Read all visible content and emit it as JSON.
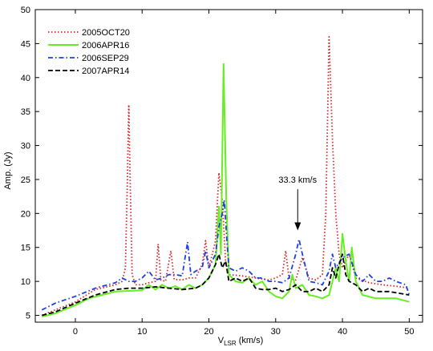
{
  "chart_data": {
    "type": "line",
    "xlabel_main": "V",
    "xlabel_sub": "LSR",
    "xlabel_unit": " (km/s)",
    "ylabel": "Amp. (Jy)",
    "xlim": [
      -6,
      52
    ],
    "ylim": [
      4,
      50
    ],
    "xticks": [
      0,
      10,
      20,
      30,
      40,
      50
    ],
    "yticks": [
      5,
      10,
      15,
      20,
      25,
      30,
      35,
      40,
      45,
      50
    ],
    "grid": false,
    "legend_position": "top-left",
    "annotation": {
      "text": "33.3 km/s",
      "x": 33.3,
      "y_text": 24.5,
      "y_tip": 17.5
    },
    "series": [
      {
        "name": "2005OCT20",
        "color": "#d62728",
        "dash": "1.5,2.5",
        "points": [
          [
            -5,
            5.0
          ],
          [
            -3,
            5.8
          ],
          [
            0,
            7.0
          ],
          [
            3,
            8.8
          ],
          [
            6,
            9.5
          ],
          [
            7,
            10.0
          ],
          [
            7.5,
            12.0
          ],
          [
            7.8,
            25.0
          ],
          [
            8.0,
            36.0
          ],
          [
            8.2,
            25.0
          ],
          [
            8.5,
            11.0
          ],
          [
            9,
            9.5
          ],
          [
            10,
            9.5
          ],
          [
            11,
            9.8
          ],
          [
            12,
            10.0
          ],
          [
            12.4,
            15.5
          ],
          [
            12.8,
            10.2
          ],
          [
            13.5,
            10.0
          ],
          [
            14.3,
            14.5
          ],
          [
            14.8,
            10.3
          ],
          [
            16,
            10.2
          ],
          [
            17,
            10.5
          ],
          [
            18,
            10.5
          ],
          [
            19,
            12.5
          ],
          [
            19.5,
            16.0
          ],
          [
            20,
            12.0
          ],
          [
            21,
            16.0
          ],
          [
            21.5,
            26.0
          ],
          [
            22,
            22.0
          ],
          [
            22.5,
            13.0
          ],
          [
            23,
            11.0
          ],
          [
            25,
            10.8
          ],
          [
            27,
            10.5
          ],
          [
            29,
            10.2
          ],
          [
            30,
            10.5
          ],
          [
            31,
            11.0
          ],
          [
            31.5,
            14.5
          ],
          [
            32,
            10.5
          ],
          [
            33,
            10.2
          ],
          [
            34,
            13.5
          ],
          [
            35,
            10.5
          ],
          [
            36,
            10.2
          ],
          [
            37,
            11.0
          ],
          [
            37.5,
            20.0
          ],
          [
            38,
            46.0
          ],
          [
            38.5,
            31.0
          ],
          [
            39,
            20.0
          ],
          [
            39.5,
            14.0
          ],
          [
            40,
            12.0
          ],
          [
            41,
            14.0
          ],
          [
            42,
            10.5
          ],
          [
            44,
            9.8
          ],
          [
            46,
            9.5
          ],
          [
            48,
            9.3
          ],
          [
            50,
            9.0
          ]
        ]
      },
      {
        "name": "2006APR16",
        "color": "#66ee22",
        "dash": "",
        "points": [
          [
            -5,
            4.8
          ],
          [
            -3,
            5.3
          ],
          [
            0,
            6.5
          ],
          [
            2,
            7.5
          ],
          [
            4,
            8.0
          ],
          [
            6,
            8.5
          ],
          [
            8,
            8.6
          ],
          [
            10,
            8.7
          ],
          [
            11,
            9.5
          ],
          [
            12,
            8.8
          ],
          [
            13,
            9.5
          ],
          [
            14,
            9.0
          ],
          [
            15,
            9.3
          ],
          [
            16,
            8.8
          ],
          [
            17,
            9.5
          ],
          [
            18,
            9.0
          ],
          [
            19,
            9.5
          ],
          [
            20,
            10.5
          ],
          [
            21,
            12.5
          ],
          [
            21.5,
            21.0
          ],
          [
            21.8,
            14.0
          ],
          [
            22.2,
            42.0
          ],
          [
            22.6,
            22.0
          ],
          [
            23,
            11.0
          ],
          [
            24,
            10.0
          ],
          [
            25,
            9.8
          ],
          [
            26,
            10.5
          ],
          [
            27,
            9.5
          ],
          [
            28,
            10.0
          ],
          [
            29,
            8.5
          ],
          [
            30,
            7.8
          ],
          [
            31,
            7.5
          ],
          [
            32,
            8.5
          ],
          [
            32.5,
            11.0
          ],
          [
            33,
            9.0
          ],
          [
            34,
            9.5
          ],
          [
            35,
            8.0
          ],
          [
            36,
            7.8
          ],
          [
            37,
            7.5
          ],
          [
            38,
            8.0
          ],
          [
            38.5,
            10.0
          ],
          [
            39,
            12.0
          ],
          [
            39.5,
            10.0
          ],
          [
            40,
            17.0
          ],
          [
            40.5,
            13.0
          ],
          [
            41,
            10.0
          ],
          [
            41.4,
            15.0
          ],
          [
            42,
            10.0
          ],
          [
            43,
            8.0
          ],
          [
            45,
            7.5
          ],
          [
            48,
            7.5
          ],
          [
            50,
            7.0
          ]
        ]
      },
      {
        "name": "2006SEP29",
        "color": "#1f3fe0",
        "dash": "6,3,1.5,3",
        "points": [
          [
            -5,
            5.8
          ],
          [
            -3,
            6.8
          ],
          [
            0,
            7.8
          ],
          [
            3,
            9.0
          ],
          [
            6,
            9.8
          ],
          [
            7,
            10.5
          ],
          [
            8,
            10.0
          ],
          [
            9,
            10.0
          ],
          [
            10,
            10.5
          ],
          [
            11,
            11.5
          ],
          [
            12,
            10.2
          ],
          [
            13,
            10.5
          ],
          [
            14,
            11.0
          ],
          [
            15,
            11.0
          ],
          [
            16,
            10.8
          ],
          [
            16.8,
            15.8
          ],
          [
            17.3,
            11.0
          ],
          [
            18,
            11.5
          ],
          [
            19,
            12.0
          ],
          [
            19.5,
            14.5
          ],
          [
            20,
            12.0
          ],
          [
            21,
            14.0
          ],
          [
            21.5,
            18.0
          ],
          [
            22,
            20.0
          ],
          [
            22.3,
            22.0
          ],
          [
            22.7,
            16.0
          ],
          [
            23,
            12.0
          ],
          [
            24,
            11.5
          ],
          [
            25,
            12.0
          ],
          [
            26,
            11.5
          ],
          [
            27,
            10.5
          ],
          [
            28,
            10.5
          ],
          [
            29,
            10.0
          ],
          [
            30,
            10.0
          ],
          [
            31,
            9.8
          ],
          [
            32,
            10.5
          ],
          [
            33,
            14.0
          ],
          [
            33.5,
            16.2
          ],
          [
            34,
            14.0
          ],
          [
            35,
            10.0
          ],
          [
            36,
            9.8
          ],
          [
            37,
            9.5
          ],
          [
            38,
            11.5
          ],
          [
            38.5,
            14.0
          ],
          [
            39,
            12.0
          ],
          [
            40,
            13.5
          ],
          [
            41,
            14.0
          ],
          [
            42,
            11.0
          ],
          [
            43,
            10.0
          ],
          [
            44,
            11.0
          ],
          [
            45,
            10.0
          ],
          [
            46,
            10.0
          ],
          [
            47,
            10.5
          ],
          [
            48,
            10.0
          ],
          [
            49.5,
            9.5
          ],
          [
            50,
            8.0
          ]
        ]
      },
      {
        "name": "2007APR14",
        "color": "#000000",
        "dash": "6,3",
        "points": [
          [
            -5,
            5.0
          ],
          [
            -3,
            5.5
          ],
          [
            0,
            6.8
          ],
          [
            3,
            8.0
          ],
          [
            6,
            8.8
          ],
          [
            8,
            9.0
          ],
          [
            10,
            9.0
          ],
          [
            12,
            9.2
          ],
          [
            14,
            9.0
          ],
          [
            16,
            8.8
          ],
          [
            18,
            9.0
          ],
          [
            19,
            9.5
          ],
          [
            20,
            10.5
          ],
          [
            21,
            12.5
          ],
          [
            21.5,
            14.0
          ],
          [
            22,
            12.0
          ],
          [
            22.5,
            13.0
          ],
          [
            23,
            10.0
          ],
          [
            24,
            10.5
          ],
          [
            25,
            10.0
          ],
          [
            26,
            10.5
          ],
          [
            27,
            9.0
          ],
          [
            28,
            8.8
          ],
          [
            29,
            8.8
          ],
          [
            30,
            9.0
          ],
          [
            31,
            8.5
          ],
          [
            32,
            8.8
          ],
          [
            33,
            9.5
          ],
          [
            34,
            8.5
          ],
          [
            35,
            8.5
          ],
          [
            36,
            9.0
          ],
          [
            37,
            8.5
          ],
          [
            38,
            9.5
          ],
          [
            38.5,
            12.0
          ],
          [
            39,
            10.5
          ],
          [
            39.5,
            12.5
          ],
          [
            40,
            14.0
          ],
          [
            40.5,
            11.0
          ],
          [
            41,
            10.0
          ],
          [
            42,
            9.5
          ],
          [
            43,
            8.5
          ],
          [
            44,
            9.0
          ],
          [
            45,
            8.5
          ],
          [
            47,
            8.5
          ],
          [
            50,
            8.0
          ]
        ]
      }
    ]
  }
}
